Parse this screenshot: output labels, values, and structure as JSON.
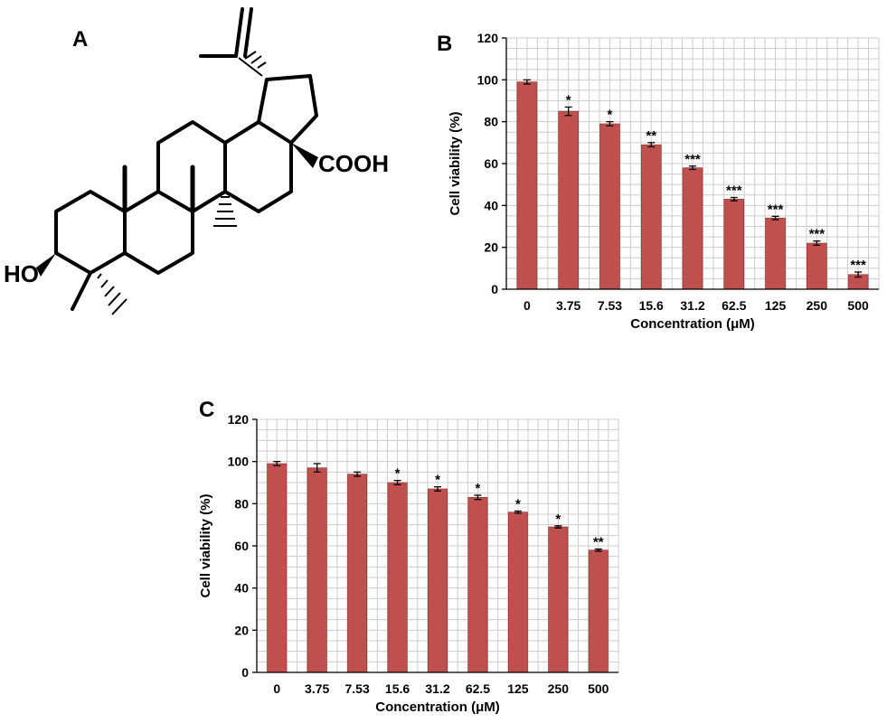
{
  "panels": {
    "a": "A",
    "b": "B",
    "c": "C"
  },
  "molecule": {
    "label_cooh": "COOH",
    "label_ho": "HO"
  },
  "colors": {
    "bar": "#C0504D",
    "bar_edge": "#8C2F2C",
    "grid": "#CCCCCC",
    "axis": "#000000"
  },
  "chart_data": [
    {
      "type": "bar",
      "panel": "B",
      "categories": [
        "0",
        "3.75",
        "7.53",
        "15.6",
        "31.2",
        "62.5",
        "125",
        "250",
        "500"
      ],
      "values": [
        99,
        85,
        79,
        69,
        58,
        43,
        34,
        22,
        7
      ],
      "errors": [
        1.0,
        2.0,
        1.0,
        1.0,
        0.8,
        0.8,
        0.8,
        1.0,
        1.2
      ],
      "annotations": [
        "",
        "*",
        "*",
        "**",
        "***",
        "***",
        "***",
        "***",
        "***"
      ],
      "xlabel": "Concentration (μM)",
      "ylabel": "Cell viability (%)",
      "ylim": [
        0,
        120
      ],
      "yticks": [
        0,
        20,
        40,
        60,
        80,
        100,
        120
      ],
      "grid": true,
      "legend": "none"
    },
    {
      "type": "bar",
      "panel": "C",
      "categories": [
        "0",
        "3.75",
        "7.53",
        "15.6",
        "31.2",
        "62.5",
        "125",
        "250",
        "500"
      ],
      "values": [
        99,
        97,
        94,
        90,
        87,
        83,
        76,
        69,
        58
      ],
      "errors": [
        1.0,
        2.0,
        1.0,
        1.0,
        1.0,
        1.0,
        0.5,
        0.5,
        0.5
      ],
      "annotations": [
        "",
        "",
        "",
        "*",
        "*",
        "*",
        "*",
        "*",
        "**"
      ],
      "xlabel": "Concentration (μM)",
      "ylabel": "Cell viability (%)",
      "ylim": [
        0,
        120
      ],
      "yticks": [
        0,
        20,
        40,
        60,
        80,
        100,
        120
      ],
      "grid": true,
      "legend": "none"
    }
  ]
}
